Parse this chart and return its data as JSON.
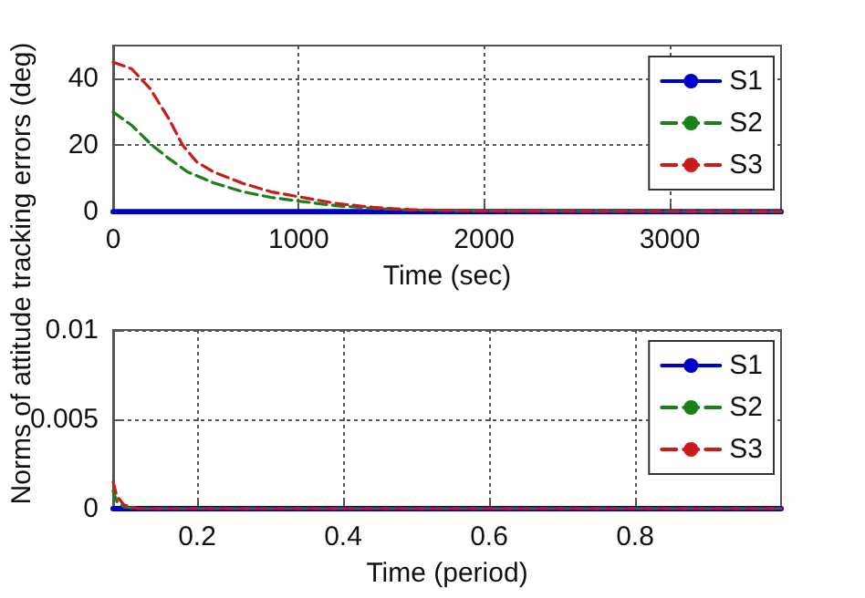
{
  "chart_data": [
    {
      "type": "line",
      "xlabel": "Time (sec)",
      "ylabel": "Norms of attitude tracking errors (deg)",
      "xlim": [
        0,
        3600
      ],
      "xticks": [
        0,
        1000,
        2000,
        3000
      ],
      "ylim": [
        0,
        50
      ],
      "yticks": [
        0,
        20,
        40
      ],
      "grid": true,
      "legend": "top right",
      "series": [
        {
          "name": "S1",
          "color": "#0000cc",
          "line_style": "solid",
          "x": [
            0,
            3600
          ],
          "values": [
            0,
            0
          ]
        },
        {
          "name": "S2",
          "color": "#1a801a",
          "line_style": "dashed",
          "x": [
            0,
            100,
            210,
            300,
            400,
            540,
            700,
            850,
            1000,
            1200,
            1400,
            1600,
            2000,
            2500,
            3600
          ],
          "values": [
            30,
            26,
            20,
            16,
            12,
            8.7,
            6,
            4.3,
            3.2,
            1.8,
            1,
            0.5,
            0.2,
            0.1,
            0
          ]
        },
        {
          "name": "S3",
          "color": "#cc1a1a",
          "line_style": "dashed",
          "x": [
            0,
            100,
            200,
            300,
            375,
            450,
            540,
            700,
            850,
            1000,
            1200,
            1400,
            1600,
            2000,
            2500,
            3600
          ],
          "values": [
            45,
            43,
            37,
            28,
            20,
            15,
            12,
            8.5,
            6,
            4.5,
            2.5,
            1.3,
            0.6,
            0.2,
            0.1,
            0
          ]
        }
      ]
    },
    {
      "type": "line",
      "xlabel": "Time (period)",
      "xlim": [
        0.085,
        1
      ],
      "xticks": [
        0.2,
        0.4,
        0.6,
        0.8
      ],
      "ylim": [
        0,
        0.01
      ],
      "yticks": [
        0,
        0.005,
        0.01
      ],
      "grid": true,
      "legend": "top right",
      "series": [
        {
          "name": "S1",
          "color": "#0000cc",
          "line_style": "solid",
          "x": [
            0.085,
            1
          ],
          "values": [
            0,
            0
          ]
        },
        {
          "name": "S2",
          "color": "#1a801a",
          "line_style": "dashed",
          "x": [
            0.085,
            0.09,
            0.1,
            0.12,
            1
          ],
          "values": [
            0.001,
            0.0004,
            0.0001,
            0,
            0
          ]
        },
        {
          "name": "S3",
          "color": "#cc1a1a",
          "line_style": "dashed",
          "x": [
            0.085,
            0.09,
            0.1,
            0.12,
            1
          ],
          "values": [
            0.0015,
            0.0007,
            0.0002,
            0,
            0
          ]
        }
      ]
    }
  ]
}
